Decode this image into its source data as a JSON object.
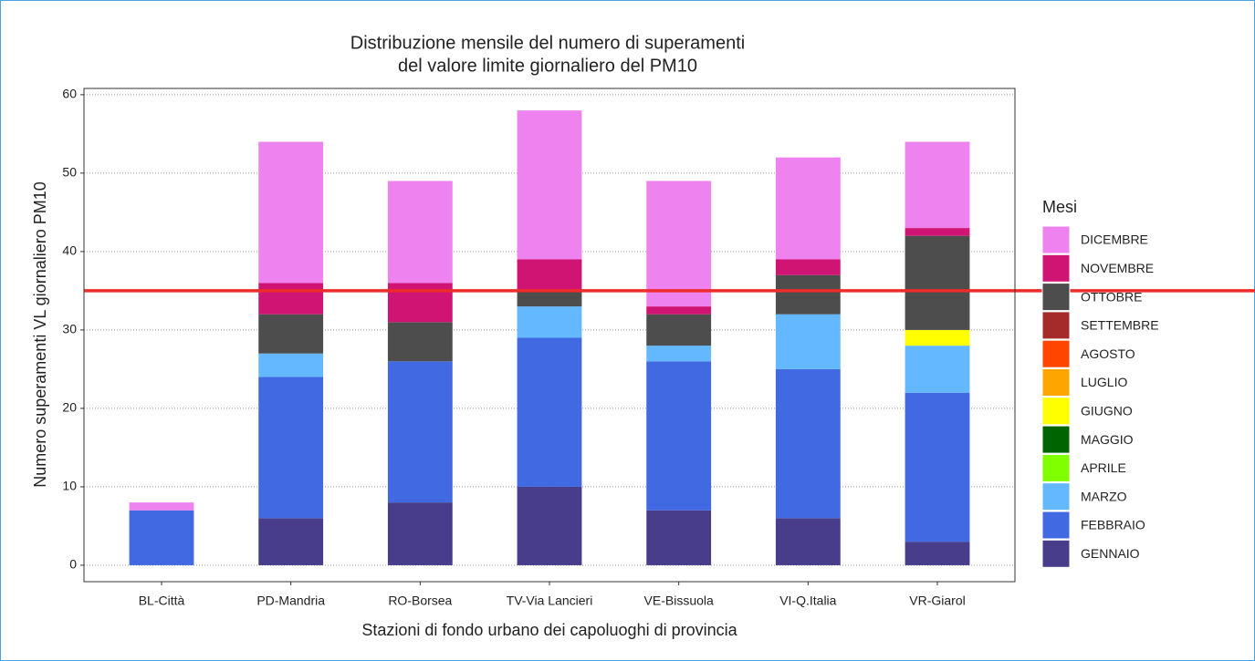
{
  "chart_data": {
    "type": "stacked_bar",
    "title": [
      "Distribuzione mensile del numero di superamenti",
      "del valore limite giornaliero del PM10"
    ],
    "x_label": "Stazioni di fondo urbano dei capoluoghi di provincia",
    "y_label": "Numero superamenti VL giornaliero PM10",
    "legend_title": "Mesi",
    "categories": [
      "BL-Città",
      "PD-Mandria",
      "RO-Borsea",
      "TV-Via Lancieri",
      "VE-Bissuola",
      "VI-Q.Italia",
      "VR-Giarol"
    ],
    "series": [
      {
        "name": "GENNAIO",
        "color": "#483d8b",
        "values": [
          0,
          6,
          8,
          10,
          7,
          6,
          3
        ]
      },
      {
        "name": "FEBBRAIO",
        "color": "#4169e1",
        "values": [
          7,
          18,
          18,
          19,
          19,
          19,
          19
        ]
      },
      {
        "name": "MARZO",
        "color": "#63b8ff",
        "values": [
          0,
          3,
          0,
          4,
          2,
          7,
          6
        ]
      },
      {
        "name": "APRILE",
        "color": "#7fff00",
        "values": [
          0,
          0,
          0,
          0,
          0,
          0,
          0
        ]
      },
      {
        "name": "MAGGIO",
        "color": "#006400",
        "values": [
          0,
          0,
          0,
          0,
          0,
          0,
          0
        ]
      },
      {
        "name": "GIUGNO",
        "color": "#ffff00",
        "values": [
          0,
          0,
          0,
          0,
          0,
          0,
          2
        ]
      },
      {
        "name": "LUGLIO",
        "color": "#ffa500",
        "values": [
          0,
          0,
          0,
          0,
          0,
          0,
          0
        ]
      },
      {
        "name": "AGOSTO",
        "color": "#ff4500",
        "values": [
          0,
          0,
          0,
          0,
          0,
          0,
          0
        ]
      },
      {
        "name": "SETTEMBRE",
        "color": "#a52a2a",
        "values": [
          0,
          0,
          0,
          0,
          0,
          0,
          0
        ]
      },
      {
        "name": "OTTOBRE",
        "color": "#4d4d4d",
        "values": [
          0,
          5,
          5,
          2,
          4,
          5,
          12
        ]
      },
      {
        "name": "NOVEMBRE",
        "color": "#d01474",
        "values": [
          0,
          4,
          5,
          4,
          1,
          2,
          1
        ]
      },
      {
        "name": "DICEMBRE",
        "color": "#ee82ee",
        "values": [
          1,
          18,
          13,
          19,
          16,
          13,
          11
        ]
      }
    ],
    "threshold": 35,
    "threshold_color": "#ee2c2c",
    "ylim": [
      -2.1,
      60.8
    ],
    "yticks": [
      0,
      10,
      20,
      30,
      40,
      50,
      60
    ],
    "grid": true
  }
}
